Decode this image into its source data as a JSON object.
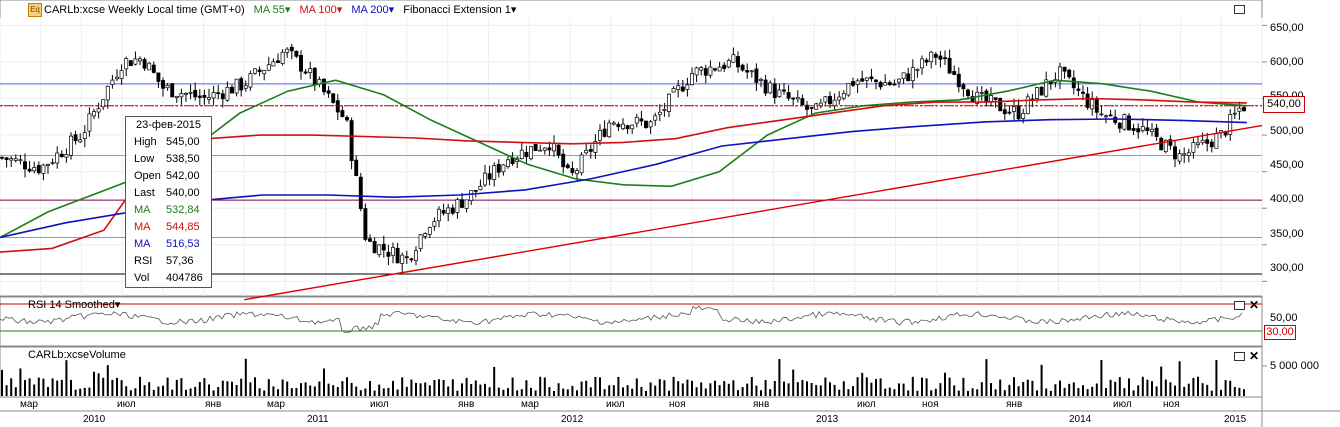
{
  "header": {
    "icon_text": "Eq",
    "symbol": "CARLb:xcse Weekly Local time (GMT+0)",
    "ma1": "MA 55",
    "ma2": "MA 100",
    "ma3": "MA 200",
    "fib": "Fibonacci Extension 1",
    "dropdown_glyph": "▾"
  },
  "info_box": {
    "date": "23-фев-2015",
    "rows": [
      {
        "label": "High",
        "value": "545,00"
      },
      {
        "label": "Low",
        "value": "538,50"
      },
      {
        "label": "Open",
        "value": "542,00"
      },
      {
        "label": "Last",
        "value": "540,00"
      },
      {
        "label": "MA",
        "value": "532,84"
      },
      {
        "label": "MA",
        "value": "544,85"
      },
      {
        "label": "MA",
        "value": "516,53"
      },
      {
        "label": "RSI",
        "value": "57,36"
      },
      {
        "label": "Vol",
        "value": "404786"
      }
    ]
  },
  "price_axis": [
    "650,00",
    "600,00",
    "550,00",
    "500,00",
    "450,00",
    "400,00",
    "350,00",
    "300,00"
  ],
  "last_price": "540,00",
  "rsi_panel": {
    "title": "RSI 14 Smoothed",
    "axis": "50,00",
    "low_label": "30,00"
  },
  "volume_panel": {
    "title": "CARLb:xcseVolume",
    "axis": "5 000 000"
  },
  "months": [
    "мар",
    "июл",
    "янв",
    "мар",
    "июл",
    "янв",
    "мар",
    "июл",
    "ноя",
    "янв",
    "июл",
    "ноя",
    "янв",
    "июл",
    "ноя"
  ],
  "years": [
    "2010",
    "2011",
    "2012",
    "2013",
    "2014",
    "2015"
  ],
  "colors": {
    "ma55": "#1a7f1a",
    "ma100": "#d01010",
    "ma200": "#1010c0",
    "trend": "#e00000",
    "up": "#ffffff",
    "down": "#000000"
  },
  "chart_data": {
    "type": "candlestick",
    "title": "CARLb:xcse Weekly",
    "y_range": [
      280,
      660
    ],
    "x_start": "2010-01",
    "x_end": "2015-03",
    "price_path": [
      {
        "t": "2010-01",
        "close": 470
      },
      {
        "t": "2010-03",
        "close": 455
      },
      {
        "t": "2010-05",
        "close": 500
      },
      {
        "t": "2010-07",
        "close": 600
      },
      {
        "t": "2010-08",
        "close": 605
      },
      {
        "t": "2010-09",
        "close": 565
      },
      {
        "t": "2010-11",
        "close": 550
      },
      {
        "t": "2011-01",
        "close": 570
      },
      {
        "t": "2011-03",
        "close": 615
      },
      {
        "t": "2011-04",
        "close": 590
      },
      {
        "t": "2011-06",
        "close": 520
      },
      {
        "t": "2011-07",
        "close": 355
      },
      {
        "t": "2011-09",
        "close": 330
      },
      {
        "t": "2011-10",
        "close": 380
      },
      {
        "t": "2011-12",
        "close": 415
      },
      {
        "t": "2012-02",
        "close": 470
      },
      {
        "t": "2012-04",
        "close": 490
      },
      {
        "t": "2012-05",
        "close": 440
      },
      {
        "t": "2012-07",
        "close": 520
      },
      {
        "t": "2012-09",
        "close": 515
      },
      {
        "t": "2012-11",
        "close": 585
      },
      {
        "t": "2013-01",
        "close": 600
      },
      {
        "t": "2013-03",
        "close": 560
      },
      {
        "t": "2013-05",
        "close": 530
      },
      {
        "t": "2013-07",
        "close": 575
      },
      {
        "t": "2013-09",
        "close": 570
      },
      {
        "t": "2013-11",
        "close": 610
      },
      {
        "t": "2014-01",
        "close": 550
      },
      {
        "t": "2014-03",
        "close": 530
      },
      {
        "t": "2014-05",
        "close": 585
      },
      {
        "t": "2014-07",
        "close": 530
      },
      {
        "t": "2014-09",
        "close": 510
      },
      {
        "t": "2014-11",
        "close": 470
      },
      {
        "t": "2015-01",
        "close": 500
      },
      {
        "t": "2015-02",
        "close": 540
      }
    ],
    "ma55_path": [
      360,
      395,
      420,
      445,
      480,
      530,
      560,
      575,
      555,
      520,
      490,
      460,
      440,
      432,
      430,
      450,
      500,
      530,
      540,
      545,
      548,
      560,
      575,
      570,
      560,
      545,
      540
    ],
    "ma100_path": [
      340,
      345,
      370,
      470,
      495,
      500,
      500,
      498,
      496,
      492,
      490,
      488,
      490,
      495,
      510,
      520,
      530,
      540,
      545,
      545,
      548,
      550,
      548,
      545,
      544
    ],
    "ma200_path": [
      360,
      380,
      395,
      410,
      418,
      418,
      415,
      418,
      425,
      440,
      460,
      485,
      495,
      505,
      512,
      518,
      521,
      522,
      520,
      517
    ],
    "trendline": {
      "from": {
        "t": "2011-01",
        "v": 275
      },
      "to": {
        "t": "2015-03",
        "v": 513
      }
    },
    "horizontal_levels": [
      570,
      540,
      472,
      411,
      360,
      310
    ],
    "volume_max": 7000000
  }
}
